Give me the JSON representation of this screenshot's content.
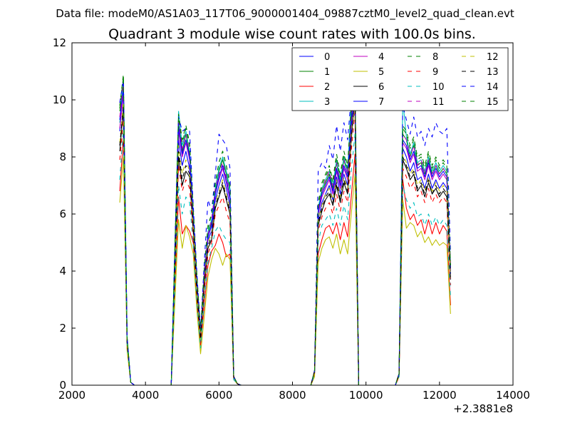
{
  "chart_data": {
    "type": "line",
    "suptitle": "Data file: modeM0/AS1A03_117T06_9000001404_09887cztM0_level2_quad_clean.evt",
    "title": "Quadrant 3 module wise count rates with 100.0s bins.",
    "xlabel": "",
    "ylabel": "",
    "x_offset_label": "+2.3881e8",
    "xlim": [
      2000,
      14000
    ],
    "ylim": [
      0,
      12
    ],
    "xticks": [
      2000,
      4000,
      6000,
      8000,
      10000,
      12000,
      14000
    ],
    "yticks": [
      0,
      2,
      4,
      6,
      8,
      10,
      12
    ],
    "legend_position": "top-right",
    "x": [
      3300,
      3400,
      3500,
      3600,
      3700,
      4700,
      4800,
      4900,
      5000,
      5100,
      5200,
      5300,
      5400,
      5500,
      5600,
      5700,
      5800,
      5900,
      6000,
      6100,
      6200,
      6300,
      6400,
      6500,
      6600,
      8500,
      8600,
      8700,
      8800,
      8900,
      9000,
      9100,
      9200,
      9300,
      9400,
      9500,
      9600,
      9700,
      9800,
      9900,
      10000,
      10800,
      10900,
      11000,
      11100,
      11200,
      11300,
      11400,
      11500,
      11600,
      11700,
      11800,
      11900,
      12000,
      12100,
      12200,
      12300
    ],
    "series": [
      {
        "name": "0",
        "color": "#0000ff",
        "dash": "solid",
        "values": [
          8.9,
          10.5,
          1.6,
          0.1,
          0,
          0,
          4.2,
          8.6,
          7.7,
          8.2,
          7.6,
          5.6,
          3.4,
          1.7,
          3.7,
          5.1,
          5.4,
          6.5,
          7.0,
          7.4,
          6.9,
          6.3,
          0.3,
          0.05,
          0,
          0,
          0.5,
          5.8,
          6.4,
          6.7,
          7.0,
          6.5,
          7.3,
          6.7,
          7.4,
          7.0,
          9.0,
          10.5,
          0,
          0,
          0,
          0,
          0.4,
          8.3,
          8.0,
          7.5,
          7.8,
          7.2,
          7.3,
          6.9,
          7.4,
          6.9,
          7.2,
          6.9,
          7.1,
          6.9,
          3.9
        ]
      },
      {
        "name": "1",
        "color": "#008000",
        "dash": "solid",
        "values": [
          9.6,
          10.5,
          1.6,
          0.1,
          0,
          0,
          4.5,
          9.2,
          8.2,
          8.8,
          8.1,
          5.9,
          3.6,
          1.8,
          3.9,
          5.3,
          5.7,
          6.8,
          7.5,
          7.9,
          7.4,
          6.8,
          0.3,
          0.05,
          0,
          0,
          0.5,
          6.1,
          6.8,
          7.1,
          7.4,
          6.9,
          7.8,
          7.1,
          7.9,
          7.4,
          9.5,
          10.8,
          0,
          0,
          0,
          0,
          0.4,
          8.8,
          8.6,
          8.0,
          8.4,
          7.7,
          7.8,
          7.4,
          7.9,
          7.4,
          7.7,
          7.4,
          7.6,
          7.4,
          4.1
        ]
      },
      {
        "name": "2",
        "color": "#ff0000",
        "dash": "solid",
        "values": [
          6.8,
          8.7,
          1.3,
          0.1,
          0,
          0,
          3.2,
          6.6,
          5.3,
          5.6,
          5.4,
          5.0,
          2.9,
          1.4,
          2.8,
          4.2,
          4.7,
          4.9,
          5.3,
          5.0,
          4.5,
          4.6,
          0.2,
          0.05,
          0,
          0,
          0.4,
          4.6,
          5.1,
          5.5,
          5.6,
          5.3,
          5.7,
          5.1,
          5.7,
          5.2,
          6.6,
          8.1,
          0,
          0,
          0,
          0,
          0.3,
          7.2,
          6.2,
          5.8,
          6.0,
          5.6,
          5.8,
          5.3,
          5.8,
          5.3,
          5.7,
          5.3,
          5.6,
          5.4,
          2.8
        ]
      },
      {
        "name": "3",
        "color": "#00bfbf",
        "dash": "solid",
        "values": [
          9.2,
          10.7,
          1.6,
          0.1,
          0,
          0,
          4.7,
          9.6,
          8.4,
          8.9,
          8.2,
          6.0,
          3.7,
          1.8,
          4.0,
          5.4,
          5.8,
          6.9,
          7.6,
          8.0,
          7.5,
          6.9,
          0.3,
          0.05,
          0,
          0,
          0.5,
          6.2,
          6.9,
          7.2,
          7.5,
          7.0,
          7.9,
          7.2,
          8.0,
          7.5,
          10.0,
          10.0,
          0,
          0,
          0,
          0,
          0.4,
          10.0,
          8.7,
          8.1,
          8.5,
          7.8,
          7.9,
          7.5,
          8.0,
          7.5,
          7.8,
          7.5,
          7.7,
          7.5,
          4.2
        ]
      },
      {
        "name": "4",
        "color": "#bf00bf",
        "dash": "solid",
        "values": [
          9.0,
          10.2,
          1.6,
          0.1,
          0,
          0,
          4.4,
          8.9,
          8.0,
          8.5,
          7.9,
          5.8,
          3.5,
          1.7,
          3.8,
          5.2,
          5.6,
          6.7,
          7.2,
          7.6,
          7.1,
          6.5,
          0.3,
          0.05,
          0,
          0,
          0.5,
          6.0,
          6.6,
          6.9,
          7.2,
          6.7,
          7.5,
          6.9,
          7.6,
          7.2,
          9.2,
          10.6,
          0,
          0,
          0,
          0,
          0.4,
          8.5,
          8.3,
          7.8,
          8.1,
          7.5,
          7.6,
          7.2,
          7.7,
          7.2,
          7.5,
          7.2,
          7.4,
          7.2,
          4.0
        ]
      },
      {
        "name": "5",
        "color": "#bfbf00",
        "dash": "solid",
        "values": [
          6.4,
          8.0,
          1.2,
          0.1,
          0,
          0,
          2.9,
          5.8,
          4.8,
          5.6,
          5.2,
          4.6,
          2.6,
          1.1,
          2.4,
          3.8,
          4.4,
          4.8,
          4.6,
          4.2,
          4.6,
          4.4,
          0.2,
          0.05,
          0,
          0,
          0.3,
          4.3,
          4.8,
          5.1,
          5.2,
          4.8,
          5.3,
          4.6,
          5.1,
          4.6,
          6.0,
          7.4,
          0,
          0,
          0,
          0,
          0.3,
          6.5,
          5.5,
          5.7,
          5.6,
          5.2,
          5.4,
          5.0,
          5.2,
          4.9,
          5.1,
          4.9,
          5.0,
          4.9,
          2.5
        ]
      },
      {
        "name": "6",
        "color": "#000000",
        "dash": "solid",
        "values": [
          8.2,
          9.7,
          1.5,
          0.1,
          0,
          0,
          4.0,
          8.0,
          7.0,
          7.5,
          7.3,
          5.4,
          3.2,
          1.5,
          3.4,
          4.8,
          5.1,
          6.2,
          6.6,
          7.0,
          6.5,
          6.0,
          0.3,
          0.05,
          0,
          0,
          0.5,
          5.6,
          6.1,
          6.5,
          6.7,
          6.3,
          7.0,
          6.4,
          7.1,
          6.7,
          8.6,
          10.1,
          0,
          0,
          0,
          0,
          0.4,
          7.9,
          7.6,
          7.2,
          7.4,
          6.8,
          7.0,
          6.6,
          7.1,
          6.7,
          6.9,
          6.6,
          6.8,
          6.6,
          3.7
        ]
      },
      {
        "name": "7",
        "color": "#0000ff",
        "dash": "solid",
        "values": [
          9.3,
          10.4,
          1.6,
          0.1,
          0,
          0,
          4.5,
          9.1,
          8.1,
          8.6,
          8.0,
          5.9,
          3.6,
          1.8,
          3.8,
          5.2,
          5.6,
          6.7,
          7.3,
          7.7,
          7.2,
          6.6,
          0.3,
          0.05,
          0,
          0,
          0.5,
          6.1,
          6.7,
          7.0,
          7.3,
          6.8,
          7.6,
          7.0,
          7.7,
          7.3,
          9.3,
          10.5,
          0,
          0,
          0,
          0,
          0.4,
          8.6,
          8.4,
          7.9,
          8.2,
          7.6,
          7.7,
          7.3,
          7.8,
          7.3,
          7.6,
          7.3,
          7.5,
          7.3,
          4.0
        ]
      },
      {
        "name": "8",
        "color": "#008000",
        "dash": "dashed",
        "values": [
          9.8,
          10.9,
          1.7,
          0.1,
          0,
          0,
          4.8,
          9.5,
          8.6,
          9.1,
          8.5,
          6.2,
          3.8,
          1.9,
          4.1,
          5.6,
          6.0,
          7.1,
          7.8,
          8.2,
          7.7,
          7.1,
          0.3,
          0.05,
          0,
          0,
          0.5,
          6.4,
          7.1,
          7.4,
          7.7,
          7.2,
          8.1,
          7.4,
          8.2,
          7.7,
          9.8,
          10.8,
          0,
          0,
          0,
          0,
          0.4,
          9.1,
          8.9,
          8.4,
          8.7,
          8.0,
          8.1,
          7.7,
          8.2,
          7.7,
          8.0,
          7.7,
          7.9,
          7.7,
          4.3
        ]
      },
      {
        "name": "9",
        "color": "#ff0000",
        "dash": "dashed",
        "values": [
          7.9,
          9.3,
          1.4,
          0.1,
          0,
          0,
          3.8,
          7.7,
          6.8,
          7.2,
          6.9,
          5.2,
          3.1,
          1.5,
          3.3,
          4.6,
          5.0,
          6.0,
          6.3,
          6.6,
          6.1,
          5.7,
          0.2,
          0.05,
          0,
          0,
          0.4,
          5.4,
          5.9,
          6.2,
          6.4,
          6.0,
          6.7,
          6.1,
          6.8,
          6.4,
          8.2,
          9.6,
          0,
          0,
          0,
          0,
          0.3,
          7.6,
          7.3,
          6.9,
          7.1,
          6.6,
          6.8,
          6.4,
          6.9,
          6.4,
          6.7,
          6.4,
          6.6,
          6.4,
          3.5
        ]
      },
      {
        "name": "10",
        "color": "#00bfbf",
        "dash": "dashed",
        "values": [
          7.2,
          9.0,
          1.4,
          0.1,
          0,
          0,
          3.4,
          7.0,
          6.0,
          6.6,
          6.4,
          4.9,
          2.9,
          1.3,
          3.0,
          4.3,
          4.8,
          5.4,
          5.6,
          5.3,
          5.1,
          5.0,
          0.2,
          0.05,
          0,
          0,
          0.4,
          5.0,
          5.6,
          5.8,
          6.0,
          5.6,
          6.2,
          5.6,
          6.3,
          5.8,
          7.5,
          8.8,
          0,
          0,
          0,
          0,
          0.3,
          7.0,
          6.5,
          6.2,
          6.4,
          5.9,
          6.0,
          5.6,
          6.0,
          5.6,
          5.9,
          5.6,
          5.8,
          5.6,
          3.1
        ]
      },
      {
        "name": "11",
        "color": "#bf00bf",
        "dash": "dashed",
        "values": [
          9.4,
          10.6,
          1.6,
          0.1,
          0,
          0,
          4.6,
          9.3,
          8.3,
          8.8,
          8.2,
          6.0,
          3.7,
          1.8,
          3.9,
          5.3,
          5.8,
          6.9,
          7.4,
          7.8,
          7.3,
          6.8,
          0.3,
          0.05,
          0,
          0,
          0.5,
          6.2,
          6.8,
          7.2,
          7.5,
          7.0,
          7.8,
          7.1,
          7.9,
          7.4,
          9.5,
          10.6,
          0,
          0,
          0,
          0,
          0.4,
          8.8,
          8.6,
          8.0,
          8.4,
          7.7,
          7.9,
          7.4,
          7.9,
          7.4,
          7.7,
          7.4,
          7.6,
          7.4,
          4.1
        ]
      },
      {
        "name": "12",
        "color": "#bfbf00",
        "dash": "dashed",
        "values": [
          8.5,
          9.9,
          1.5,
          0.1,
          0,
          0,
          4.2,
          8.4,
          7.4,
          7.9,
          7.5,
          5.6,
          3.3,
          1.6,
          3.6,
          5.0,
          5.3,
          6.4,
          6.8,
          7.2,
          6.7,
          6.2,
          0.3,
          0.05,
          0,
          0,
          0.5,
          5.8,
          6.3,
          6.7,
          6.9,
          6.5,
          7.2,
          6.6,
          7.3,
          6.9,
          8.8,
          10.2,
          0,
          0,
          0,
          0,
          0.4,
          8.1,
          7.8,
          7.4,
          7.6,
          7.0,
          7.2,
          6.8,
          7.3,
          6.8,
          7.1,
          6.8,
          7.0,
          6.8,
          3.8
        ]
      },
      {
        "name": "13",
        "color": "#000000",
        "dash": "dashed",
        "values": [
          8.4,
          9.8,
          1.5,
          0.1,
          0,
          0,
          4.1,
          8.2,
          7.2,
          7.7,
          7.4,
          5.5,
          3.3,
          1.6,
          3.5,
          4.9,
          5.2,
          6.3,
          6.7,
          7.1,
          6.6,
          6.1,
          0.3,
          0.05,
          0,
          0,
          0.5,
          5.7,
          6.2,
          6.6,
          6.8,
          6.4,
          7.1,
          6.5,
          7.2,
          6.8,
          8.7,
          10.1,
          0,
          0,
          0,
          0,
          0.4,
          8.0,
          7.7,
          7.3,
          7.5,
          6.9,
          7.1,
          6.7,
          7.2,
          6.7,
          7.0,
          6.7,
          6.9,
          6.7,
          3.7
        ]
      },
      {
        "name": "14",
        "color": "#0000ff",
        "dash": "dashed",
        "values": [
          9.9,
          10.7,
          1.7,
          0.1,
          0,
          0,
          4.9,
          9.4,
          8.9,
          9.0,
          8.9,
          6.3,
          3.9,
          1.9,
          4.3,
          6.5,
          6.1,
          7.4,
          8.8,
          8.6,
          8.4,
          7.6,
          0.3,
          0.05,
          0,
          0,
          0.5,
          7.5,
          7.8,
          7.6,
          8.4,
          7.9,
          9.1,
          8.2,
          9.2,
          8.6,
          10.1,
          10.5,
          0,
          0,
          0,
          0,
          0.4,
          9.8,
          9.3,
          8.8,
          9.4,
          8.7,
          8.9,
          8.4,
          9.0,
          8.7,
          9.2,
          8.9,
          8.8,
          9.0,
          4.6
        ]
      },
      {
        "name": "15",
        "color": "#008000",
        "dash": "dashed",
        "values": [
          9.7,
          10.8,
          1.7,
          0.1,
          0,
          0,
          4.8,
          9.4,
          8.5,
          9.0,
          8.4,
          6.1,
          3.8,
          1.9,
          4.1,
          5.5,
          6.0,
          7.1,
          7.8,
          8.2,
          7.7,
          7.0,
          0.3,
          0.05,
          0,
          0,
          0.5,
          6.3,
          7.0,
          7.3,
          7.6,
          7.1,
          8.0,
          7.3,
          8.1,
          7.6,
          9.7,
          10.7,
          0,
          0,
          0,
          0,
          0.4,
          9.0,
          8.8,
          8.3,
          8.6,
          7.9,
          8.0,
          7.6,
          8.1,
          7.6,
          7.9,
          7.6,
          7.8,
          7.6,
          4.2
        ]
      }
    ]
  }
}
